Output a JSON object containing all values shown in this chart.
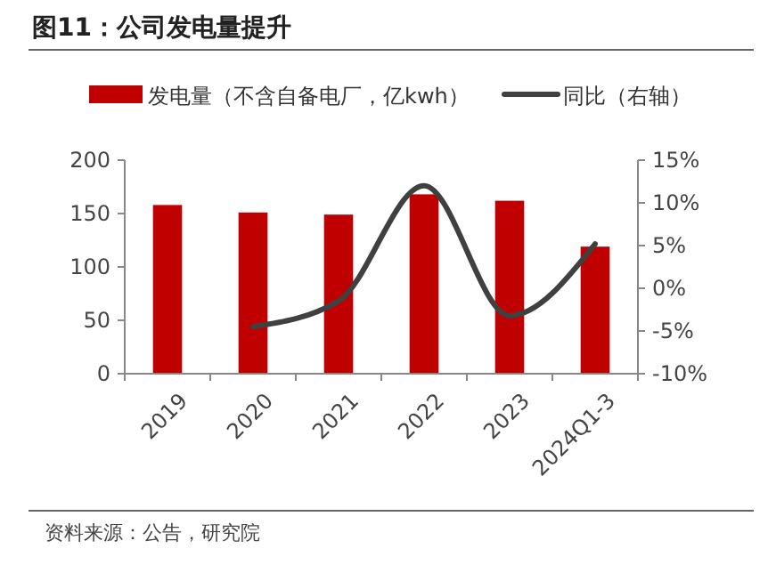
{
  "chart_data": {
    "type": "bar",
    "title": "图11：公司发电量提升",
    "categories": [
      "2019",
      "2020",
      "2021",
      "2022",
      "2023",
      "2024Q1-3"
    ],
    "series": [
      {
        "name": "发电量（不含自备电厂，亿kwh）",
        "color": "#c00000",
        "values": [
          158,
          151,
          149,
          168,
          162,
          119
        ]
      },
      {
        "name": "同比（右轴）",
        "type": "line",
        "axis": "y2",
        "color": "#404040",
        "values": [
          null,
          -4.5,
          -1.5,
          12,
          -3.2,
          5.2
        ]
      }
    ],
    "ylim": [
      0,
      200
    ],
    "yticks": [
      0,
      50,
      100,
      150,
      200
    ],
    "y2lim": [
      -10,
      15
    ],
    "y2ticks": [
      {
        "value": -10,
        "label": "-10%"
      },
      {
        "value": -5,
        "label": "-5%"
      },
      {
        "value": 0,
        "label": "0%"
      },
      {
        "value": 5,
        "label": "5%"
      },
      {
        "value": 10,
        "label": "10%"
      },
      {
        "value": 15,
        "label": "15%"
      }
    ],
    "legend": "top",
    "grid": false,
    "annotations": [
      "资料来源：公告，研究院"
    ]
  }
}
